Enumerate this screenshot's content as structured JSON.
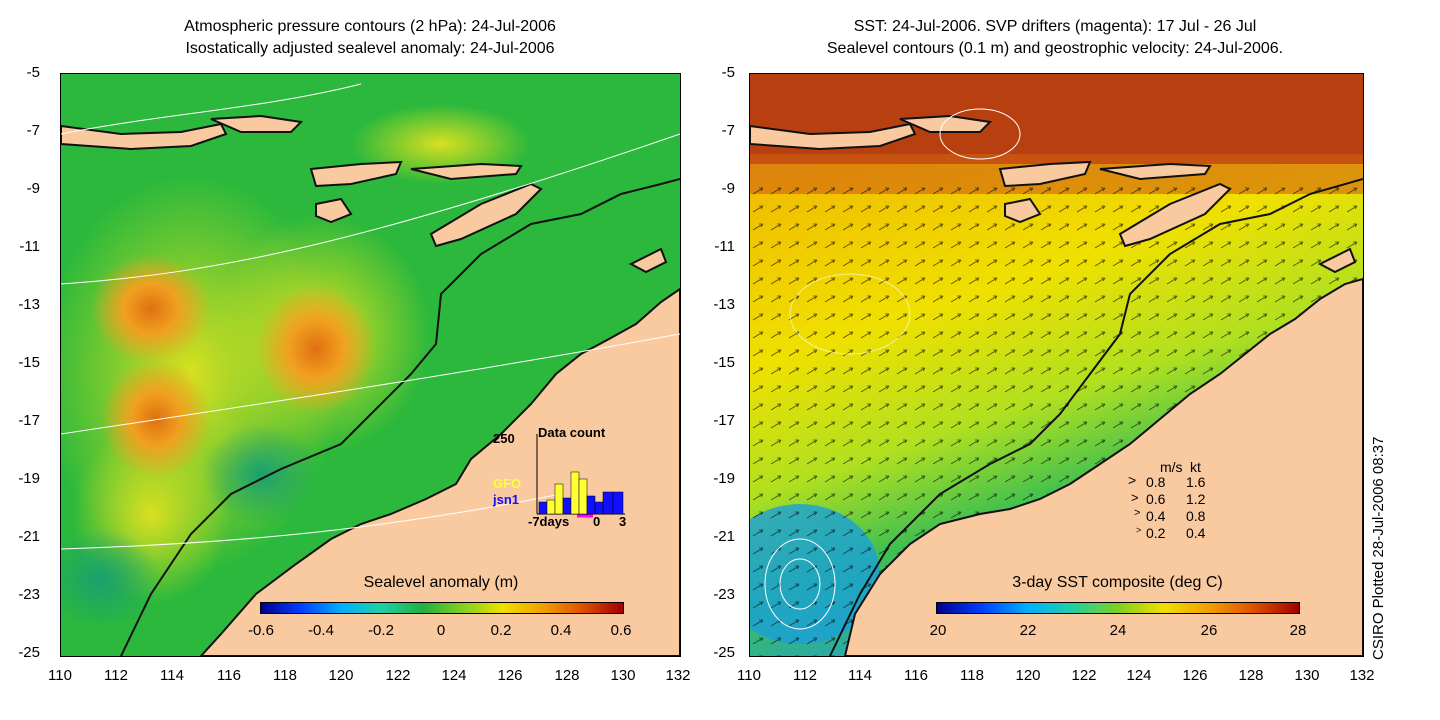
{
  "left_panel": {
    "title_line1": "Atmospheric pressure contours (2 hPa): 24-Jul-2006",
    "title_line2": "Isostatically adjusted sealevel anomaly: 24-Jul-2006",
    "colorbar": {
      "title": "Sealevel anomaly (m)",
      "ticks": [
        "-0.6",
        "-0.4",
        "-0.2",
        "0",
        "0.2",
        "0.4",
        "0.6"
      ]
    },
    "data_count": {
      "title": "Data count",
      "max_label": "250",
      "series": [
        {
          "name": "GFO",
          "color": "#ffff33"
        },
        {
          "name": "jsn1",
          "color": "#1010ff"
        }
      ],
      "x_labels": [
        "-7days",
        "0",
        "3"
      ]
    }
  },
  "right_panel": {
    "title_line1": "SST: 24-Jul-2006. SVP drifters (magenta): 17 Jul - 26 Jul",
    "title_line2": "Sealevel contours (0.1 m) and geostrophic velocity: 24-Jul-2006.",
    "colorbar": {
      "title": "3-day SST composite (deg C)",
      "ticks": [
        "20",
        "22",
        "24",
        "26",
        "28"
      ]
    },
    "velocity_legend": {
      "header_ms": "m/s",
      "header_kt": "kt",
      "rows": [
        {
          "ms": "0.8",
          "kt": "1.6"
        },
        {
          "ms": "0.6",
          "kt": "1.2"
        },
        {
          "ms": "0.4",
          "kt": "0.8"
        },
        {
          "ms": "0.2",
          "kt": "0.4"
        }
      ]
    }
  },
  "axes": {
    "y_ticks": [
      "-5",
      "-7",
      "-9",
      "-11",
      "-13",
      "-15",
      "-17",
      "-19",
      "-21",
      "-23",
      "-25"
    ],
    "x_ticks": [
      "110",
      "112",
      "114",
      "116",
      "118",
      "120",
      "122",
      "124",
      "126",
      "128",
      "130",
      "132"
    ]
  },
  "credit": "CSIRO Plotted 28-Jul-2006 08:37",
  "colors": {
    "land": "#f9c99f",
    "coast": "#111111",
    "sla_background": "#27b83a",
    "sst_background": "#f0d000"
  }
}
